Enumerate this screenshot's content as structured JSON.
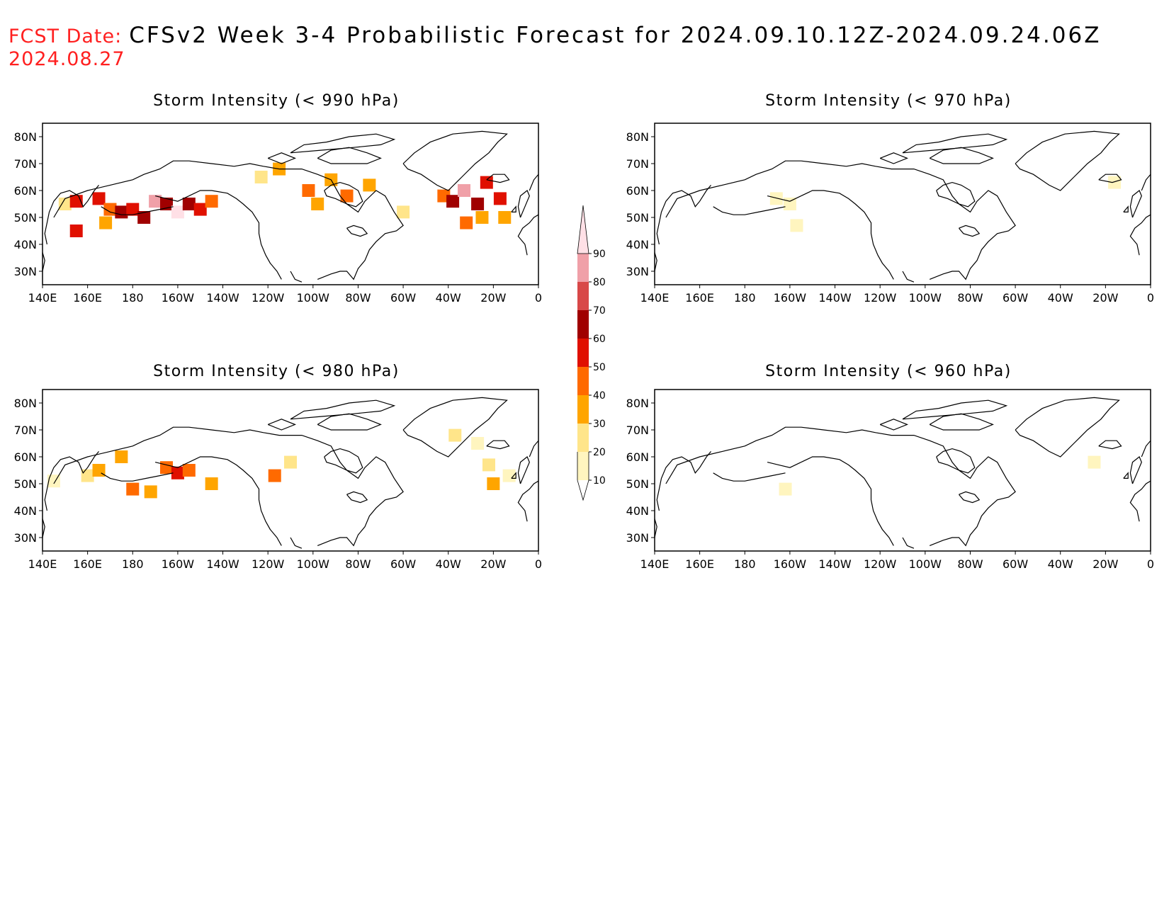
{
  "header": {
    "fcst_label": "FCST Date:",
    "title": "CFSv2 Week 3-4 Probabilistic Forecast for 2024.09.10.12Z-2024.09.24.06Z",
    "fcst_date": "2024.08.27"
  },
  "panels": [
    {
      "id": "p990",
      "title": "Storm Intensity (< 990 hPa)"
    },
    {
      "id": "p970",
      "title": "Storm Intensity (< 970 hPa)"
    },
    {
      "id": "p980",
      "title": "Storm Intensity (< 980 hPa)"
    },
    {
      "id": "p960",
      "title": "Storm Intensity (< 960 hPa)"
    }
  ],
  "axes": {
    "lat_labels": [
      "80N",
      "70N",
      "60N",
      "50N",
      "40N",
      "30N"
    ],
    "lon_labels": [
      "140E",
      "160E",
      "180",
      "160W",
      "140W",
      "120W",
      "100W",
      "80W",
      "60W",
      "40W",
      "20W",
      "0"
    ]
  },
  "colorbar": {
    "levels": [
      "10",
      "20",
      "30",
      "40",
      "50",
      "60",
      "70",
      "80",
      "90"
    ],
    "colors": [
      "#fff5bf",
      "#ffe58a",
      "#ffa500",
      "#ff6a00",
      "#e01000",
      "#a00000",
      "#d84848",
      "#f0a0a8",
      "#ffe0e6"
    ]
  },
  "chart_data": {
    "type": "heatmap",
    "units": "probability (%)",
    "lon_range": [
      140,
      360
    ],
    "lat_range": [
      25,
      85
    ],
    "fields": {
      "p990": [
        [
          150,
          55,
          25
        ],
        [
          155,
          56,
          50
        ],
        [
          165,
          57,
          55
        ],
        [
          170,
          53,
          45
        ],
        [
          175,
          52,
          60
        ],
        [
          180,
          53,
          55
        ],
        [
          185,
          50,
          65
        ],
        [
          190,
          56,
          85
        ],
        [
          195,
          55,
          60
        ],
        [
          200,
          52,
          90
        ],
        [
          205,
          55,
          60
        ],
        [
          210,
          53,
          55
        ],
        [
          215,
          56,
          40
        ],
        [
          155,
          45,
          50
        ],
        [
          168,
          48,
          30
        ],
        [
          237,
          65,
          25
        ],
        [
          245,
          68,
          35
        ],
        [
          258,
          60,
          40
        ],
        [
          262,
          55,
          30
        ],
        [
          268,
          64,
          35
        ],
        [
          275,
          58,
          45
        ],
        [
          285,
          62,
          30
        ],
        [
          300,
          52,
          25
        ],
        [
          318,
          58,
          45
        ],
        [
          322,
          56,
          65
        ],
        [
          327,
          60,
          80
        ],
        [
          333,
          55,
          60
        ],
        [
          337,
          63,
          55
        ],
        [
          343,
          57,
          50
        ],
        [
          328,
          48,
          40
        ],
        [
          335,
          50,
          35
        ],
        [
          345,
          50,
          30
        ]
      ],
      "p980": [
        [
          145,
          51,
          15
        ],
        [
          160,
          53,
          20
        ],
        [
          165,
          55,
          30
        ],
        [
          175,
          60,
          35
        ],
        [
          180,
          48,
          40
        ],
        [
          188,
          47,
          35
        ],
        [
          195,
          56,
          40
        ],
        [
          200,
          54,
          55
        ],
        [
          205,
          55,
          45
        ],
        [
          215,
          50,
          30
        ],
        [
          243,
          53,
          45
        ],
        [
          250,
          58,
          25
        ],
        [
          323,
          68,
          25
        ],
        [
          333,
          65,
          15
        ],
        [
          338,
          57,
          25
        ],
        [
          340,
          50,
          35
        ],
        [
          347,
          53,
          15
        ]
      ],
      "p970": [
        [
          194,
          57,
          15
        ],
        [
          200,
          55,
          15
        ],
        [
          203,
          47,
          15
        ],
        [
          344,
          63,
          12
        ]
      ],
      "p960": [
        [
          198,
          48,
          12
        ],
        [
          335,
          58,
          10
        ]
      ]
    }
  }
}
